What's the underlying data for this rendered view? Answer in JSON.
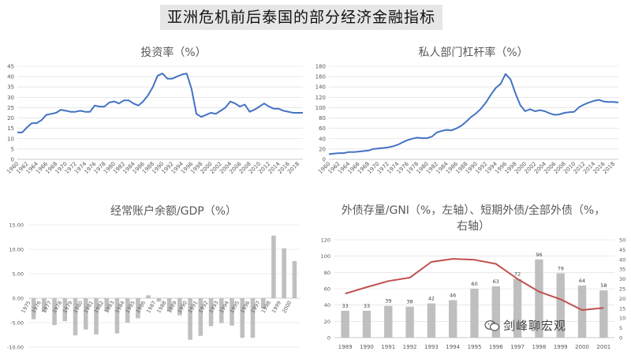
{
  "page_title": "亚洲危机前后泰国的部分经济金融指标",
  "watermark": "剑峰聊宏观",
  "colors": {
    "line": "#4472c4",
    "bar": "#bfbfbf",
    "red": "#c0504d",
    "grid": "#d9d9d9",
    "axis": "#bfbfbf"
  },
  "chart_data": [
    {
      "type": "line",
      "title": "投资率（%）",
      "x_start": 1960,
      "x_end": 2019,
      "x_ticks": [
        1960,
        1962,
        1964,
        1966,
        1968,
        1970,
        1972,
        1974,
        1976,
        1978,
        1980,
        1982,
        1984,
        1986,
        1988,
        1990,
        1992,
        1994,
        1996,
        1998,
        2000,
        2002,
        2004,
        2006,
        2008,
        2010,
        2012,
        2014,
        2016,
        2018
      ],
      "y_ticks": [
        0,
        5,
        10,
        15,
        20,
        25,
        30,
        35,
        40,
        45
      ],
      "ylim": [
        0,
        45
      ],
      "values": [
        13,
        13,
        15.5,
        17.5,
        17.5,
        19,
        21.5,
        22,
        22.5,
        24,
        23.5,
        23,
        23,
        23.5,
        23,
        23,
        26,
        25.5,
        25.5,
        27.5,
        28,
        27,
        28.5,
        28.5,
        27,
        26,
        28,
        31,
        35,
        40.5,
        41.5,
        39,
        39,
        40,
        41,
        41.5,
        34,
        22,
        20.5,
        21.5,
        22.5,
        22,
        23.5,
        25,
        28,
        27,
        25.5,
        26.5,
        23,
        24,
        25.5,
        27,
        25.5,
        24.5,
        24.5,
        23.5,
        23,
        22.5,
        22.5,
        22.5
      ]
    },
    {
      "type": "line",
      "title": "私人部门杠杆率（%）",
      "x_start": 1960,
      "x_end": 2019,
      "x_ticks": [
        1960,
        1962,
        1964,
        1966,
        1968,
        1970,
        1972,
        1974,
        1976,
        1978,
        1980,
        1982,
        1984,
        1986,
        1988,
        1990,
        1992,
        1994,
        1996,
        1998,
        2000,
        2002,
        2004,
        2006,
        2008,
        2010,
        2012,
        2014,
        2016,
        2018
      ],
      "y_ticks": [
        0,
        20,
        40,
        60,
        80,
        100,
        120,
        140,
        160,
        180
      ],
      "ylim": [
        0,
        180
      ],
      "values": [
        10,
        11,
        12,
        12,
        14,
        14,
        15,
        16,
        17,
        20,
        21,
        22,
        23,
        25,
        28,
        33,
        37,
        40,
        42,
        41,
        41,
        44,
        52,
        55,
        57,
        56,
        60,
        65,
        73,
        82,
        89,
        98,
        110,
        125,
        138,
        146,
        165,
        155,
        128,
        105,
        93,
        97,
        93,
        95,
        93,
        89,
        86,
        87,
        90,
        91,
        92,
        101,
        106,
        110,
        113,
        115,
        112,
        111,
        111,
        110
      ]
    },
    {
      "type": "bar",
      "title": "经常账户余额/GDP（%）",
      "categories": [
        "1975",
        "1976",
        "1977",
        "1978",
        "1979",
        "1980",
        "1981",
        "1982",
        "1983",
        "1984",
        "1985",
        "1986",
        "1987",
        "1988",
        "1989",
        "1990",
        "1991",
        "1992",
        "1993",
        "1994",
        "1995",
        "1996",
        "1997",
        "1998",
        "1999",
        "2000"
      ],
      "values": [
        -4.3,
        -2.8,
        -5.5,
        -4.7,
        -7.6,
        -6.4,
        -7.4,
        -2.7,
        -7.2,
        -5.0,
        -4.1,
        0.6,
        -0.7,
        -2.7,
        -3.5,
        -8.5,
        -7.7,
        -5.7,
        -5.1,
        -5.6,
        -8.1,
        -8.1,
        -2.1,
        12.8,
        10.2,
        7.6
      ],
      "y_ticks": [
        "-10.00",
        "-5.00",
        "0.00",
        "5.00",
        "10.00",
        "15.00"
      ],
      "ylim": [
        -10,
        15
      ]
    },
    {
      "type": "bar+line",
      "title": "外债存量/GNI（%，左轴）、短期外债/全部外债（%，右轴）",
      "categories": [
        "1989",
        "1990",
        "1991",
        "1992",
        "1993",
        "1994",
        "1995",
        "1996",
        "1997",
        "1998",
        "1999",
        "2000",
        "2001"
      ],
      "bar_values": [
        33,
        33,
        39,
        38,
        42,
        46,
        60,
        63,
        72,
        96,
        79,
        64,
        58
      ],
      "line_values": [
        22.5,
        25.8,
        28.9,
        30.7,
        38.7,
        40.3,
        39.8,
        37.7,
        30.0,
        23.5,
        19.6,
        14.1,
        15.2
      ],
      "y_left_ticks": [
        0,
        20,
        40,
        60,
        80,
        100,
        120
      ],
      "y_left_lim": [
        0,
        120
      ],
      "y_right_ticks": [
        0,
        5,
        10,
        15,
        20,
        25,
        30,
        35,
        40,
        45,
        50
      ],
      "y_right_lim": [
        0,
        50
      ]
    }
  ]
}
